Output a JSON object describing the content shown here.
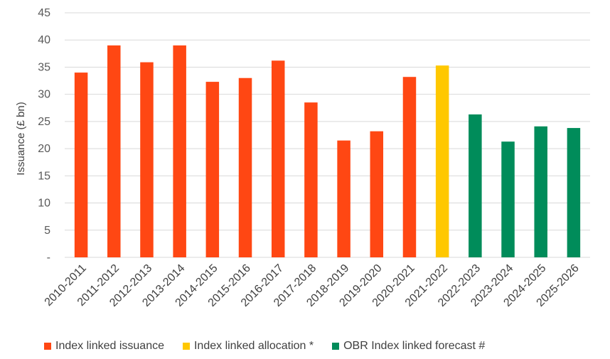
{
  "chart_data": {
    "type": "bar",
    "ylabel": "Issuance (£ bn)",
    "ylim": [
      0,
      45
    ],
    "y_ticks": [
      {
        "value": 0,
        "label": "-"
      },
      {
        "value": 5,
        "label": "5"
      },
      {
        "value": 10,
        "label": "10"
      },
      {
        "value": 15,
        "label": "15"
      },
      {
        "value": 20,
        "label": "20"
      },
      {
        "value": 25,
        "label": "25"
      },
      {
        "value": 30,
        "label": "30"
      },
      {
        "value": 35,
        "label": "35"
      },
      {
        "value": 40,
        "label": "40"
      },
      {
        "value": 45,
        "label": "45"
      }
    ],
    "grid": true,
    "legend_position": "bottom",
    "categories": [
      "2010-2011",
      "2011-2012",
      "2012-2013",
      "2013-2014",
      "2014-2015",
      "2015-2016",
      "2016-2017",
      "2017-2018",
      "2018-2019",
      "2019-2020",
      "2020-2021",
      "2021-2022",
      "2022-2023",
      "2023-2024",
      "2024-2025",
      "2025-2026"
    ],
    "series": [
      {
        "name": "Index linked issuance",
        "color": "#ff4713",
        "values": [
          34.0,
          39.0,
          35.9,
          39.0,
          32.3,
          33.0,
          36.2,
          28.5,
          21.5,
          23.2,
          33.2,
          null,
          null,
          null,
          null,
          null
        ]
      },
      {
        "name": "Index linked allocation *",
        "color": "#ffc800",
        "values": [
          null,
          null,
          null,
          null,
          null,
          null,
          null,
          null,
          null,
          null,
          null,
          35.3,
          null,
          null,
          null,
          null
        ]
      },
      {
        "name": "OBR Index linked forecast #",
        "color": "#008c5a",
        "values": [
          null,
          null,
          null,
          null,
          null,
          null,
          null,
          null,
          null,
          null,
          null,
          null,
          26.3,
          21.3,
          24.1,
          23.8
        ]
      }
    ]
  }
}
